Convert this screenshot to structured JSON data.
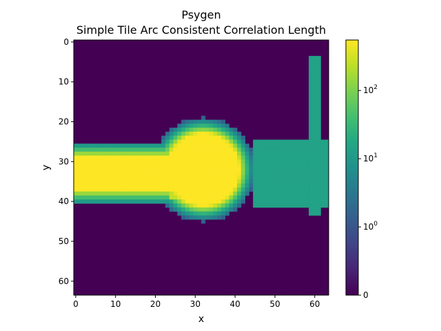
{
  "chart_data": {
    "type": "heatmap",
    "title": "Psygen",
    "subtitle": "Simple Tile Arc Consistent Correlation Length",
    "xlabel": "x",
    "ylabel": "y",
    "xlim": [
      0,
      63
    ],
    "ylim": [
      63,
      0
    ],
    "grid_size": [
      64,
      64
    ],
    "x_ticks": [
      "0",
      "10",
      "20",
      "30",
      "40",
      "50",
      "60"
    ],
    "y_ticks": [
      "0",
      "10",
      "20",
      "30",
      "40",
      "50",
      "60"
    ],
    "x_tick_values": [
      0,
      10,
      20,
      30,
      40,
      50,
      60
    ],
    "y_tick_values": [
      0,
      10,
      20,
      30,
      40,
      50,
      60
    ],
    "colormap": "viridis",
    "color_scale": "symlog",
    "colorbar_ticks": [
      {
        "value": 0,
        "label": "0"
      },
      {
        "value": 1,
        "label": "10",
        "exp": "0"
      },
      {
        "value": 10,
        "label": "10",
        "exp": "1"
      },
      {
        "value": 100,
        "label": "10",
        "exp": "2"
      }
    ],
    "colorbar_range": [
      0,
      550
    ],
    "regions": [
      {
        "name": "background",
        "value": 0
      },
      {
        "name": "horizontal band",
        "x": [
          0,
          24
        ],
        "y": [
          26,
          40
        ],
        "center_value": 550
      },
      {
        "name": "disc",
        "center": [
          32,
          32
        ],
        "radius": 13,
        "center_value": 550
      },
      {
        "name": "rectangle",
        "x": [
          45,
          63
        ],
        "y": [
          25,
          41
        ],
        "value": 14
      },
      {
        "name": "vertical bar",
        "x": [
          59,
          61
        ],
        "y": [
          4,
          43
        ],
        "value": 14
      },
      {
        "name": "right strip",
        "x": [
          62,
          63
        ],
        "y": [
          28,
          38
        ],
        "value": 14
      }
    ]
  }
}
